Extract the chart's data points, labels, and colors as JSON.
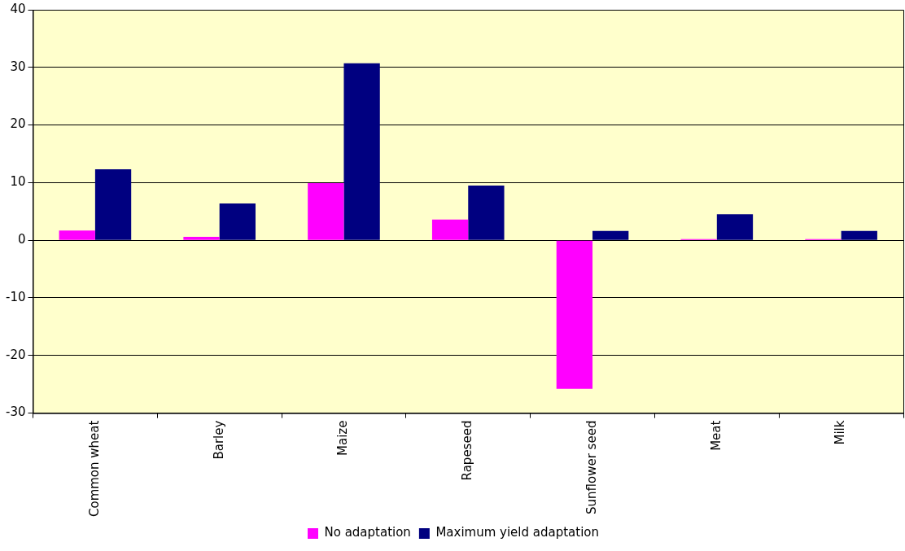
{
  "chart_data": {
    "type": "bar",
    "categories": [
      "Common wheat",
      "Barley",
      "Maize",
      "Rapeseed",
      "Sunflower seed",
      "Meat",
      "Milk"
    ],
    "series": [
      {
        "name": "No adaptation",
        "color": "#ff00ff",
        "values": [
          1.7,
          0.6,
          9.9,
          3.6,
          -25.8,
          0.2,
          0.2
        ]
      },
      {
        "name": "Maximum yield adaptation",
        "color": "#000080",
        "values": [
          12.3,
          6.4,
          30.7,
          9.5,
          1.6,
          4.5,
          1.6
        ]
      }
    ],
    "ylim": [
      -30,
      40
    ],
    "yticks": [
      -30,
      -20,
      -10,
      0,
      10,
      20,
      30,
      40
    ],
    "grid": "y",
    "legend": "bottom"
  }
}
